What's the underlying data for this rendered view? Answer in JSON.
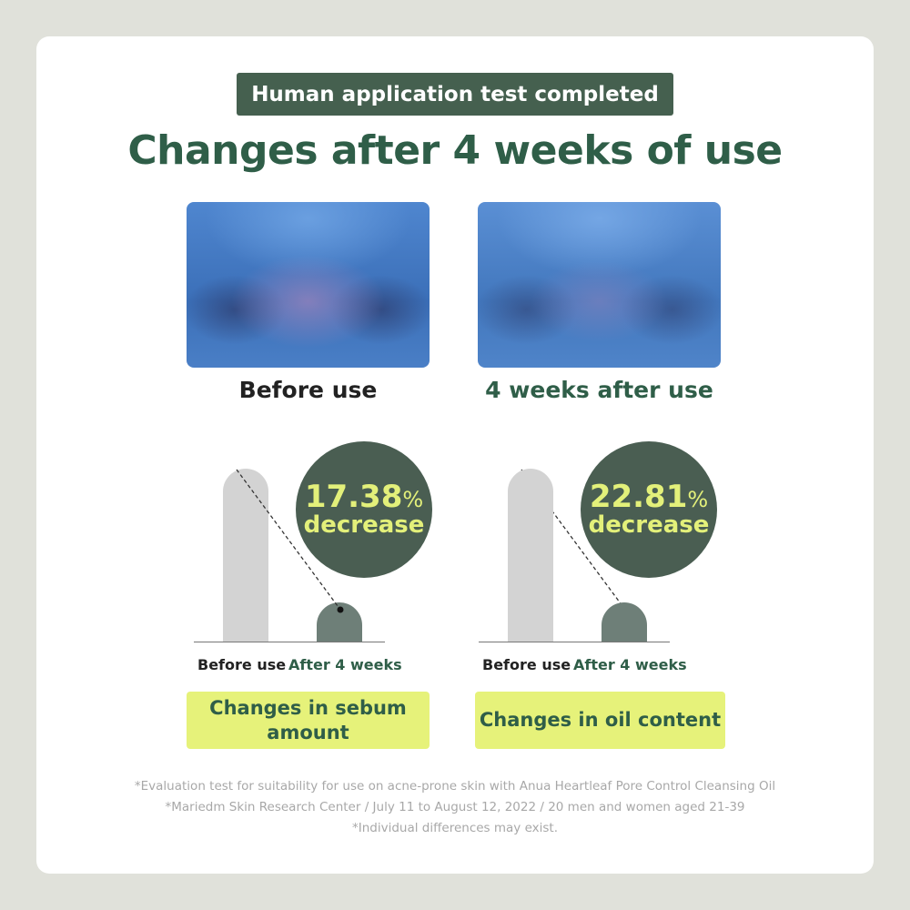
{
  "badge": "Human application test completed",
  "title": "Changes after 4 weeks of use",
  "photos": [
    {
      "caption": "Before use"
    },
    {
      "caption": "4 weeks after use"
    }
  ],
  "charts": [
    {
      "percent": "17.38",
      "percent_sign": "%",
      "change": "decrease",
      "bar_labels": [
        "Before use",
        "After 4 weeks"
      ],
      "metric": "Changes in sebum amount"
    },
    {
      "percent": "22.81",
      "percent_sign": "%",
      "change": "decrease",
      "bar_labels": [
        "Before use",
        "After 4 weeks"
      ],
      "metric": "Changes in oil content"
    }
  ],
  "footnotes": [
    "*Evaluation test for suitability for use on acne-prone skin with Anua Heartleaf Pore Control Cleansing Oil",
    "*Mariedm Skin Research Center / July 11 to August 12, 2022 / 20 men and women aged 21-39",
    "*Individual differences may exist."
  ],
  "colors": {
    "brand_green": "#2f5e48",
    "badge_bg": "#45604f",
    "circle_bg": "#4a5e52",
    "highlight": "#e6f27a",
    "highlight_text": "#e3f07a",
    "bar_before": "#d3d3d3",
    "bar_after": "#6e7f78"
  }
}
